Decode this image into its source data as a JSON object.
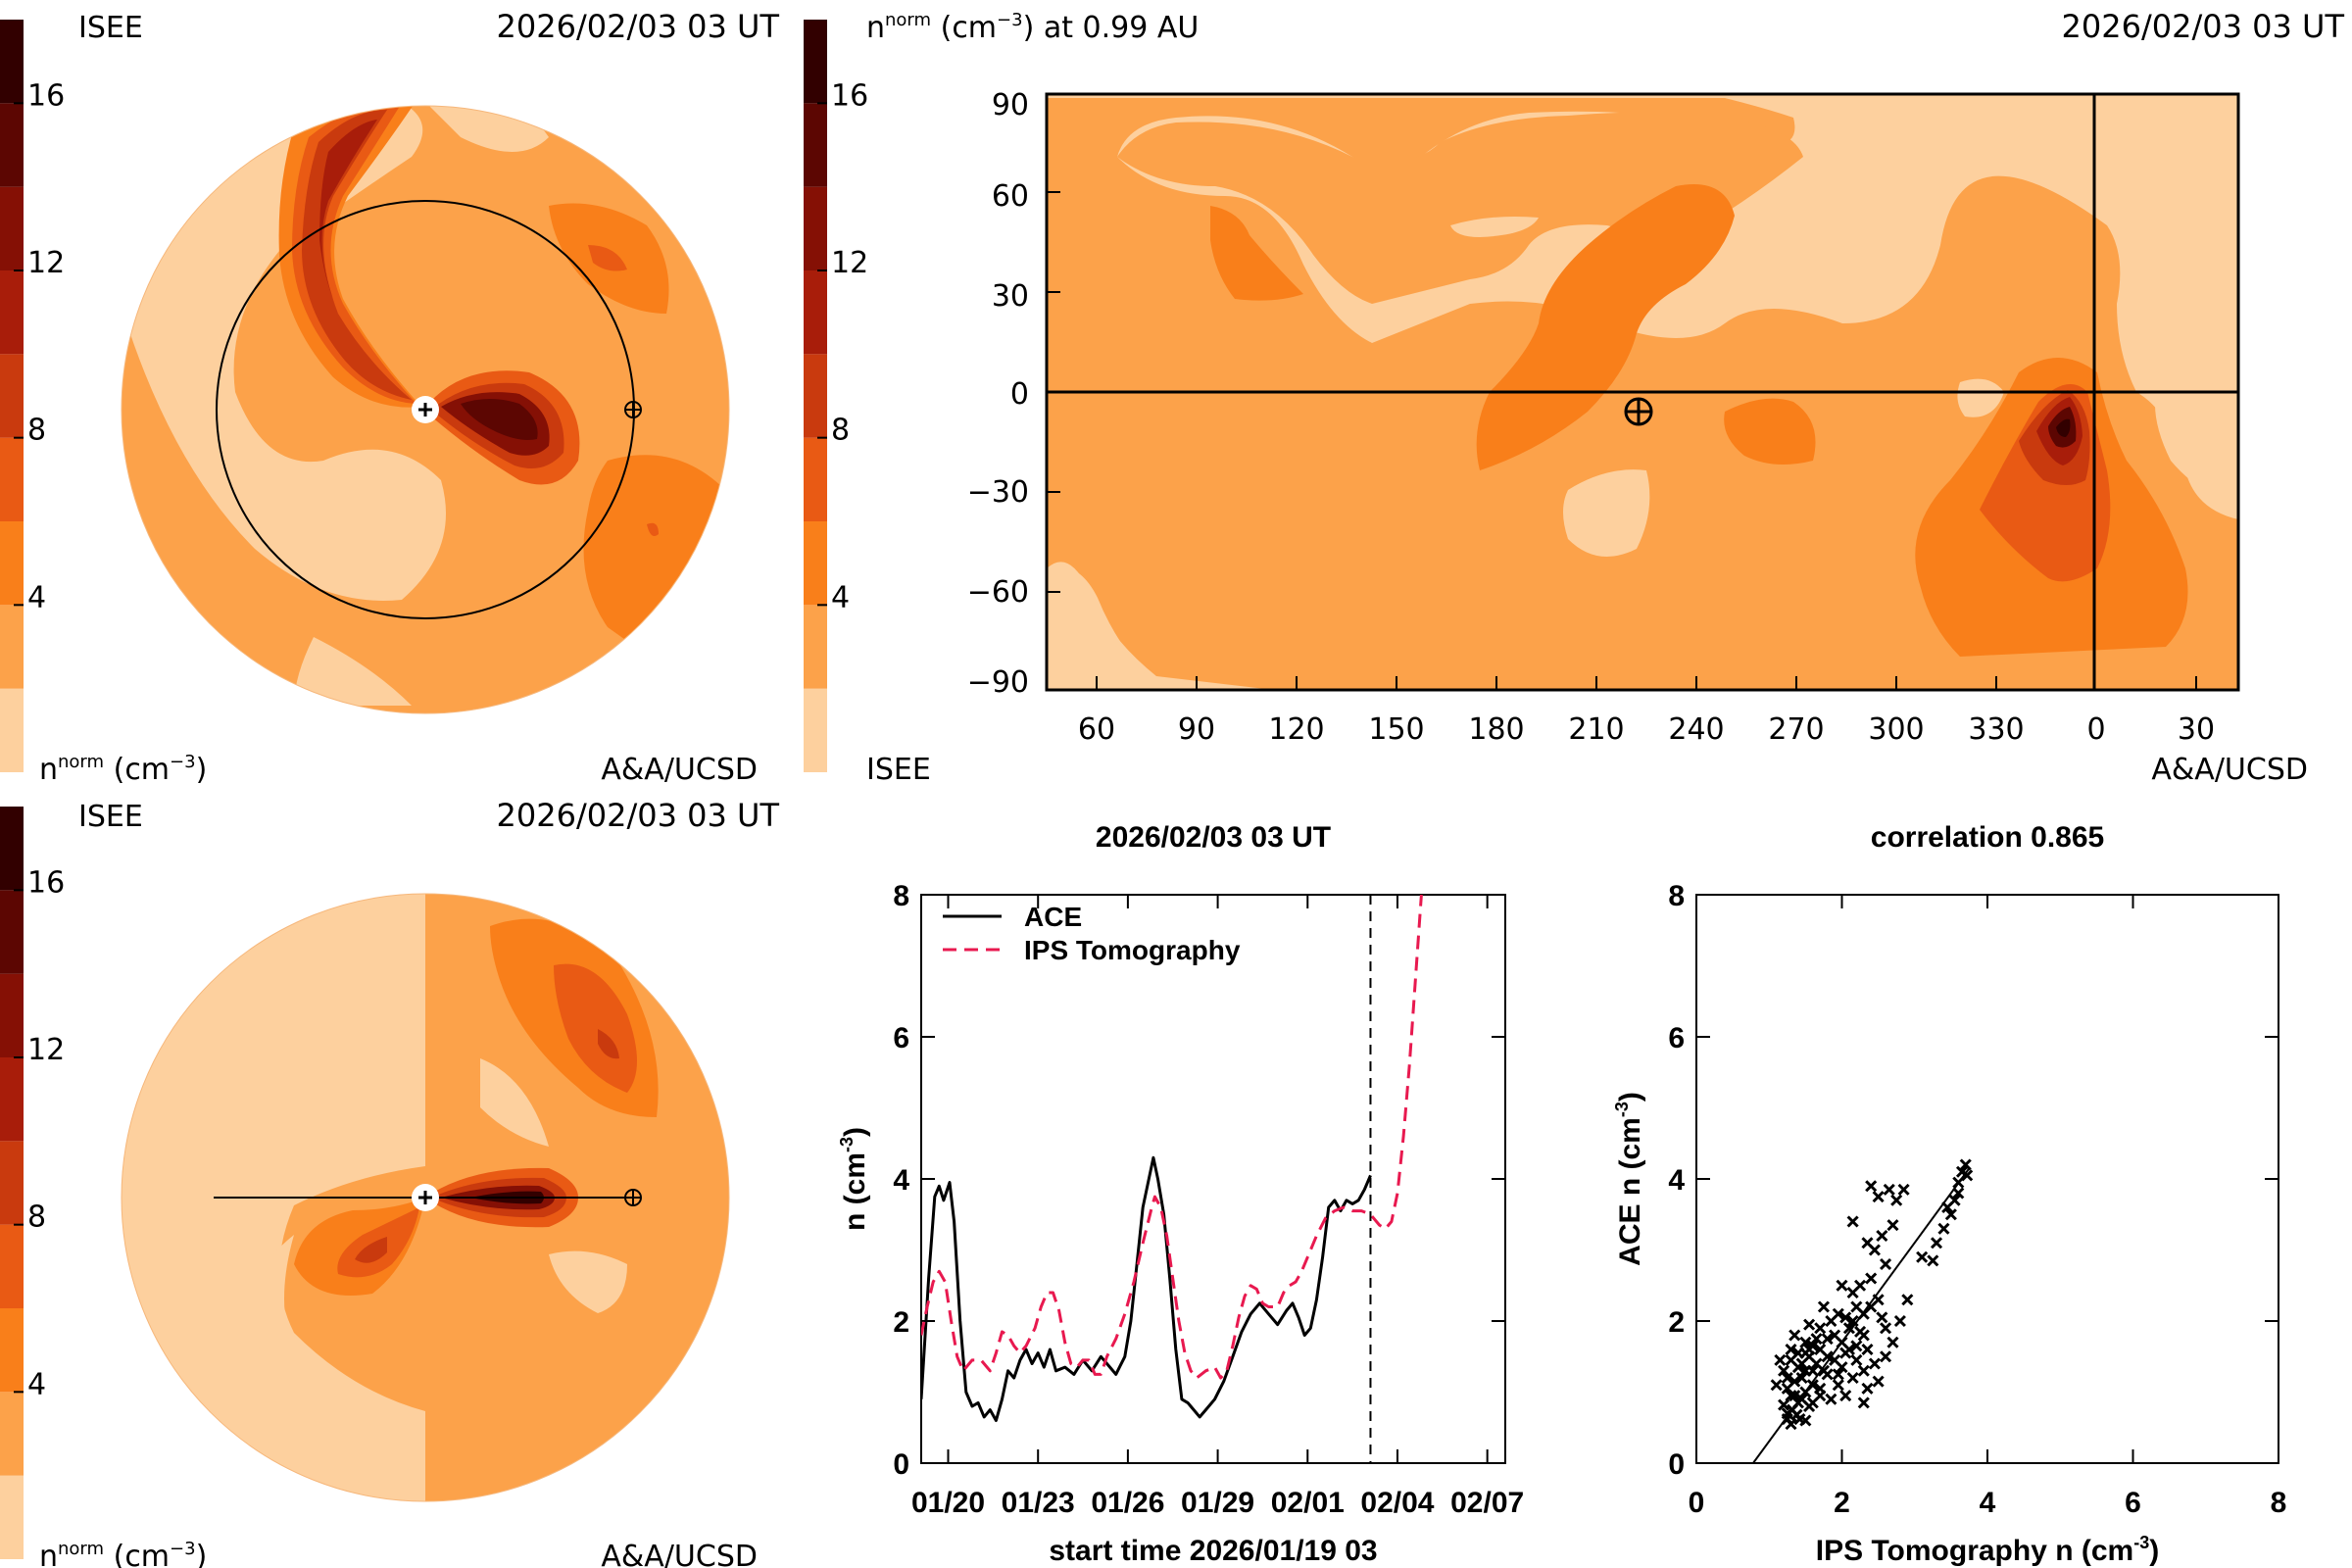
{
  "panels": {
    "ecliptic": {
      "agency": "ISEE",
      "timestamp": "2026/02/03 03 UT",
      "colorbar_title": "n",
      "colorbar_title_sup": "norm",
      "colorbar_units": "(cm",
      "colorbar_units_sup": "−3",
      "colorbar_units_close": ")",
      "credit": "A&A/UCSD"
    },
    "meridional": {
      "agency": "ISEE",
      "timestamp": "2026/02/03 03 UT",
      "colorbar_title": "n",
      "colorbar_title_sup": "norm",
      "colorbar_units": "(cm",
      "colorbar_units_sup": "−3",
      "colorbar_units_close": ")",
      "credit": "A&A/UCSD"
    },
    "map": {
      "header": "n",
      "header_sup": "norm",
      "header_units": "(cm",
      "header_units_sup": "−3",
      "header_rest": ") at 0.99 AU",
      "timestamp": "2026/02/03 03 UT",
      "agency": "ISEE",
      "credit": "A&A/UCSD"
    }
  },
  "colorscale": {
    "levels": [
      0,
      2,
      4,
      6,
      8,
      10,
      12,
      14,
      16,
      18
    ],
    "tick_labels": [
      "4",
      "8",
      "12",
      "16"
    ],
    "colors": [
      "#fdd09e",
      "#fca24a",
      "#f97f1a",
      "#e95a14",
      "#c93a0e",
      "#a81d0a",
      "#851005",
      "#5c0602",
      "#320000"
    ]
  },
  "chart_data": [
    {
      "type": "line",
      "title": "2026/02/03 03 UT",
      "xlabel": "start time 2026/01/19 03",
      "ylabel": "n (cm",
      "ylabel_sup": "-3",
      "ylabel_close": ")",
      "ylim": [
        0,
        8
      ],
      "xlim": [
        0,
        19.5
      ],
      "x_unit": "days since 2026/01/19 03 UT",
      "yticks": [
        0,
        2,
        4,
        6,
        8
      ],
      "ytick_labels": [
        "0",
        "2",
        "4",
        "6",
        "8"
      ],
      "xticks": [
        0.9,
        3.9,
        6.9,
        9.9,
        12.9,
        15.9,
        18.9
      ],
      "xtick_labels": [
        "01/20",
        "01/23",
        "01/26",
        "01/29",
        "02/01",
        "02/04",
        "02/07"
      ],
      "now_marker_x": 15.0,
      "series": [
        {
          "name": "ACE",
          "color": "#000000",
          "style": "solid",
          "points": [
            [
              0.0,
              0.9
            ],
            [
              0.25,
              2.6
            ],
            [
              0.45,
              3.75
            ],
            [
              0.6,
              3.9
            ],
            [
              0.75,
              3.7
            ],
            [
              0.95,
              3.95
            ],
            [
              1.1,
              3.4
            ],
            [
              1.3,
              2.0
            ],
            [
              1.5,
              1.0
            ],
            [
              1.7,
              0.8
            ],
            [
              1.9,
              0.85
            ],
            [
              2.1,
              0.65
            ],
            [
              2.3,
              0.75
            ],
            [
              2.5,
              0.6
            ],
            [
              2.7,
              0.9
            ],
            [
              2.9,
              1.3
            ],
            [
              3.1,
              1.2
            ],
            [
              3.3,
              1.45
            ],
            [
              3.5,
              1.6
            ],
            [
              3.7,
              1.4
            ],
            [
              3.9,
              1.55
            ],
            [
              4.1,
              1.35
            ],
            [
              4.3,
              1.6
            ],
            [
              4.5,
              1.3
            ],
            [
              4.8,
              1.35
            ],
            [
              5.1,
              1.25
            ],
            [
              5.4,
              1.45
            ],
            [
              5.7,
              1.3
            ],
            [
              6.0,
              1.5
            ],
            [
              6.3,
              1.35
            ],
            [
              6.5,
              1.25
            ],
            [
              6.8,
              1.5
            ],
            [
              7.0,
              2.0
            ],
            [
              7.2,
              2.8
            ],
            [
              7.4,
              3.6
            ],
            [
              7.6,
              4.0
            ],
            [
              7.75,
              4.3
            ],
            [
              7.9,
              4.0
            ],
            [
              8.1,
              3.5
            ],
            [
              8.3,
              2.6
            ],
            [
              8.5,
              1.6
            ],
            [
              8.7,
              0.9
            ],
            [
              8.9,
              0.85
            ],
            [
              9.1,
              0.75
            ],
            [
              9.3,
              0.65
            ],
            [
              9.5,
              0.75
            ],
            [
              9.8,
              0.9
            ],
            [
              10.1,
              1.15
            ],
            [
              10.4,
              1.5
            ],
            [
              10.7,
              1.85
            ],
            [
              11.0,
              2.1
            ],
            [
              11.3,
              2.25
            ],
            [
              11.6,
              2.1
            ],
            [
              11.9,
              1.95
            ],
            [
              12.2,
              2.15
            ],
            [
              12.4,
              2.25
            ],
            [
              12.6,
              2.05
            ],
            [
              12.8,
              1.8
            ],
            [
              13.0,
              1.9
            ],
            [
              13.2,
              2.3
            ],
            [
              13.4,
              2.9
            ],
            [
              13.6,
              3.6
            ],
            [
              13.8,
              3.7
            ],
            [
              14.0,
              3.55
            ],
            [
              14.2,
              3.7
            ],
            [
              14.4,
              3.65
            ],
            [
              14.6,
              3.7
            ],
            [
              14.8,
              3.85
            ],
            [
              15.0,
              4.05
            ]
          ]
        },
        {
          "name": "IPS Tomography",
          "color": "#e8194f",
          "style": "dashed",
          "points": [
            [
              0.0,
              1.8
            ],
            [
              0.2,
              2.2
            ],
            [
              0.4,
              2.55
            ],
            [
              0.6,
              2.7
            ],
            [
              0.8,
              2.55
            ],
            [
              1.0,
              2.0
            ],
            [
              1.2,
              1.5
            ],
            [
              1.4,
              1.3
            ],
            [
              1.7,
              1.45
            ],
            [
              2.0,
              1.45
            ],
            [
              2.3,
              1.3
            ],
            [
              2.5,
              1.55
            ],
            [
              2.7,
              1.85
            ],
            [
              2.9,
              1.8
            ],
            [
              3.1,
              1.65
            ],
            [
              3.3,
              1.55
            ],
            [
              3.5,
              1.65
            ],
            [
              3.8,
              1.9
            ],
            [
              4.0,
              2.2
            ],
            [
              4.2,
              2.4
            ],
            [
              4.4,
              2.4
            ],
            [
              4.6,
              2.15
            ],
            [
              4.8,
              1.7
            ],
            [
              5.0,
              1.4
            ],
            [
              5.2,
              1.35
            ],
            [
              5.4,
              1.45
            ],
            [
              5.6,
              1.45
            ],
            [
              5.8,
              1.25
            ],
            [
              6.0,
              1.25
            ],
            [
              6.2,
              1.5
            ],
            [
              6.5,
              1.75
            ],
            [
              6.8,
              2.1
            ],
            [
              7.1,
              2.55
            ],
            [
              7.4,
              3.1
            ],
            [
              7.7,
              3.6
            ],
            [
              7.8,
              3.75
            ],
            [
              8.0,
              3.6
            ],
            [
              8.2,
              3.2
            ],
            [
              8.4,
              2.6
            ],
            [
              8.6,
              2.0
            ],
            [
              8.8,
              1.55
            ],
            [
              9.0,
              1.3
            ],
            [
              9.2,
              1.2
            ],
            [
              9.5,
              1.3
            ],
            [
              9.8,
              1.35
            ],
            [
              10.0,
              1.2
            ],
            [
              10.2,
              1.3
            ],
            [
              10.4,
              1.65
            ],
            [
              10.6,
              2.05
            ],
            [
              10.8,
              2.35
            ],
            [
              11.0,
              2.5
            ],
            [
              11.2,
              2.45
            ],
            [
              11.4,
              2.25
            ],
            [
              11.6,
              2.2
            ],
            [
              11.9,
              2.2
            ],
            [
              12.1,
              2.4
            ],
            [
              12.3,
              2.5
            ],
            [
              12.5,
              2.55
            ],
            [
              12.7,
              2.7
            ],
            [
              12.9,
              2.9
            ],
            [
              13.2,
              3.2
            ],
            [
              13.5,
              3.45
            ],
            [
              13.8,
              3.55
            ],
            [
              14.1,
              3.6
            ],
            [
              14.4,
              3.55
            ],
            [
              14.7,
              3.55
            ],
            [
              15.0,
              3.5
            ],
            [
              15.3,
              3.35
            ],
            [
              15.5,
              3.3
            ],
            [
              15.7,
              3.4
            ],
            [
              15.9,
              3.8
            ],
            [
              16.1,
              4.6
            ],
            [
              16.3,
              5.6
            ],
            [
              16.5,
              6.8
            ],
            [
              16.7,
              8.0
            ]
          ]
        }
      ]
    },
    {
      "type": "scatter",
      "title": "correlation 0.865",
      "xlabel": "IPS Tomography n (cm",
      "xlabel_sup": "-3",
      "xlabel_close": ")",
      "ylabel": "ACE n (cm",
      "ylabel_sup": "-3",
      "ylabel_close": ")",
      "xlim": [
        0,
        8
      ],
      "ylim": [
        0,
        8
      ],
      "ticks": [
        0,
        2,
        4,
        6,
        8
      ],
      "tick_labels": [
        "0",
        "2",
        "4",
        "6",
        "8"
      ],
      "fit_line": [
        [
          0.78,
          0.0
        ],
        [
          3.75,
          4.15
        ]
      ],
      "points": [
        [
          1.25,
          0.62
        ],
        [
          1.32,
          0.75
        ],
        [
          1.3,
          0.55
        ],
        [
          1.38,
          0.68
        ],
        [
          1.42,
          0.62
        ],
        [
          1.2,
          0.82
        ],
        [
          1.3,
          0.95
        ],
        [
          1.4,
          0.85
        ],
        [
          1.5,
          0.6
        ],
        [
          1.55,
          0.8
        ],
        [
          1.25,
          1.05
        ],
        [
          1.35,
          1.15
        ],
        [
          1.45,
          1.2
        ],
        [
          1.5,
          1.0
        ],
        [
          1.6,
          1.1
        ],
        [
          1.7,
          1.05
        ],
        [
          1.2,
          1.3
        ],
        [
          1.3,
          1.45
        ],
        [
          1.4,
          1.35
        ],
        [
          1.5,
          1.3
        ],
        [
          1.55,
          1.5
        ],
        [
          1.65,
          1.4
        ],
        [
          1.75,
          1.3
        ],
        [
          1.8,
          1.5
        ],
        [
          1.9,
          1.45
        ],
        [
          2.0,
          1.35
        ],
        [
          2.05,
          1.55
        ],
        [
          2.15,
          1.2
        ],
        [
          2.2,
          1.45
        ],
        [
          2.3,
          1.3
        ],
        [
          1.3,
          1.6
        ],
        [
          1.4,
          1.55
        ],
        [
          1.5,
          1.7
        ],
        [
          1.6,
          1.65
        ],
        [
          1.7,
          1.6
        ],
        [
          1.8,
          1.75
        ],
        [
          1.9,
          1.8
        ],
        [
          2.0,
          1.7
        ],
        [
          2.1,
          1.9
        ],
        [
          2.2,
          1.65
        ],
        [
          2.3,
          1.8
        ],
        [
          2.35,
          1.6
        ],
        [
          1.55,
          1.95
        ],
        [
          1.7,
          1.9
        ],
        [
          1.85,
          2.0
        ],
        [
          1.95,
          2.1
        ],
        [
          2.05,
          2.05
        ],
        [
          2.2,
          2.2
        ],
        [
          2.3,
          2.1
        ],
        [
          2.4,
          2.2
        ],
        [
          2.5,
          2.3
        ],
        [
          2.55,
          2.05
        ],
        [
          1.45,
          0.9
        ],
        [
          1.6,
          0.85
        ],
        [
          1.7,
          0.95
        ],
        [
          1.85,
          0.9
        ],
        [
          1.95,
          1.1
        ],
        [
          2.05,
          0.95
        ],
        [
          2.3,
          0.85
        ],
        [
          2.35,
          1.05
        ],
        [
          2.5,
          1.15
        ],
        [
          2.6,
          1.5
        ],
        [
          2.7,
          1.7
        ],
        [
          2.8,
          2.0
        ],
        [
          2.9,
          2.3
        ],
        [
          2.6,
          1.9
        ],
        [
          2.15,
          2.4
        ],
        [
          2.25,
          2.5
        ],
        [
          2.4,
          2.6
        ],
        [
          2.35,
          3.1
        ],
        [
          2.45,
          3.0
        ],
        [
          2.55,
          3.2
        ],
        [
          2.6,
          2.8
        ],
        [
          2.7,
          3.35
        ],
        [
          2.65,
          3.85
        ],
        [
          2.4,
          3.9
        ],
        [
          2.5,
          3.75
        ],
        [
          2.75,
          3.7
        ],
        [
          2.85,
          3.85
        ],
        [
          2.15,
          3.4
        ],
        [
          3.1,
          2.9
        ],
        [
          3.25,
          2.85
        ],
        [
          3.3,
          3.1
        ],
        [
          3.4,
          3.3
        ],
        [
          3.5,
          3.5
        ],
        [
          3.55,
          3.7
        ],
        [
          3.6,
          3.95
        ],
        [
          3.65,
          4.1
        ],
        [
          3.7,
          4.2
        ],
        [
          3.72,
          4.05
        ],
        [
          3.6,
          3.8
        ],
        [
          3.45,
          3.6
        ],
        [
          1.35,
          1.8
        ],
        [
          1.15,
          1.45
        ],
        [
          1.1,
          1.1
        ],
        [
          1.95,
          1.25
        ],
        [
          2.1,
          1.6
        ],
        [
          1.75,
          2.2
        ],
        [
          2.45,
          1.4
        ],
        [
          2.0,
          2.5
        ],
        [
          1.6,
          1.3
        ],
        [
          1.45,
          1.4
        ],
        [
          1.55,
          1.6
        ],
        [
          1.65,
          1.75
        ],
        [
          1.35,
          0.95
        ],
        [
          1.25,
          1.2
        ],
        [
          2.25,
          1.85
        ],
        [
          2.15,
          2.0
        ],
        [
          1.5,
          1.55
        ],
        [
          1.8,
          1.25
        ],
        [
          1.25,
          0.7
        ]
      ]
    }
  ]
}
